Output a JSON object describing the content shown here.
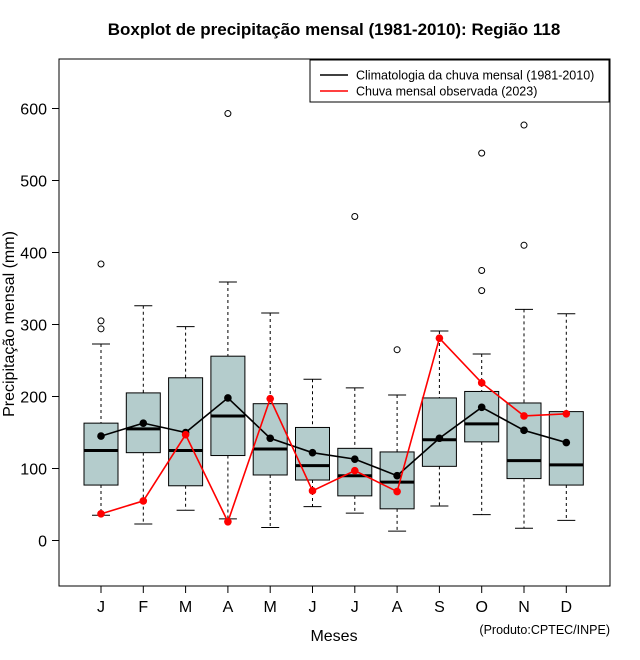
{
  "chart_data": {
    "type": "boxplot",
    "title": "Boxplot de precipitação mensal (1981-2010): Região 118",
    "xlabel": "Meses",
    "ylabel": "Precipitação mensal (mm)",
    "ylim": [
      -65,
      665
    ],
    "yticks": [
      0,
      100,
      200,
      300,
      400,
      500,
      600
    ],
    "categories": [
      "J",
      "F",
      "M",
      "A",
      "M",
      "J",
      "J",
      "A",
      "S",
      "O",
      "N",
      "D"
    ],
    "box_color": "#b4cccc",
    "boxes": [
      {
        "whisker_low": 35,
        "q1": 77,
        "median": 125,
        "q3": 163,
        "whisker_high": 273,
        "outliers": [
          384,
          305,
          294
        ]
      },
      {
        "whisker_low": 23,
        "q1": 122,
        "median": 155,
        "q3": 205,
        "whisker_high": 326,
        "outliers": []
      },
      {
        "whisker_low": 42,
        "q1": 76,
        "median": 125,
        "q3": 226,
        "whisker_high": 297,
        "outliers": []
      },
      {
        "whisker_low": 30,
        "q1": 118,
        "median": 173,
        "q3": 256,
        "whisker_high": 359,
        "outliers": [
          593
        ]
      },
      {
        "whisker_low": 18,
        "q1": 91,
        "median": 127,
        "q3": 190,
        "whisker_high": 316,
        "outliers": []
      },
      {
        "whisker_low": 47,
        "q1": 84,
        "median": 104,
        "q3": 157,
        "whisker_high": 224,
        "outliers": []
      },
      {
        "whisker_low": 38,
        "q1": 62,
        "median": 90,
        "q3": 128,
        "whisker_high": 212,
        "outliers": [
          450
        ]
      },
      {
        "whisker_low": 13,
        "q1": 44,
        "median": 81,
        "q3": 123,
        "whisker_high": 202,
        "outliers": [
          265
        ]
      },
      {
        "whisker_low": 48,
        "q1": 103,
        "median": 140,
        "q3": 198,
        "whisker_high": 291,
        "outliers": []
      },
      {
        "whisker_low": 36,
        "q1": 137,
        "median": 162,
        "q3": 207,
        "whisker_high": 259,
        "outliers": [
          538,
          375,
          347
        ]
      },
      {
        "whisker_low": 17,
        "q1": 86,
        "median": 111,
        "q3": 191,
        "whisker_high": 321,
        "outliers": [
          577,
          410
        ]
      },
      {
        "whisker_low": 28,
        "q1": 77,
        "median": 105,
        "q3": 179,
        "whisker_high": 315,
        "outliers": []
      }
    ],
    "series": [
      {
        "name": "Climatologia da chuva mensal (1981-2010)",
        "color": "#000000",
        "values": [
          145,
          163,
          150,
          198,
          142,
          122,
          113,
          90,
          142,
          185,
          153,
          136
        ]
      },
      {
        "name": "Chuva mensal observada (2023)",
        "color": "#ff0000",
        "values": [
          37,
          55,
          147,
          26,
          197,
          69,
          97,
          68,
          281,
          219,
          173,
          176
        ]
      }
    ],
    "legend_position": "top-right",
    "credit": "(Produto:CPTEC/INPE)"
  }
}
